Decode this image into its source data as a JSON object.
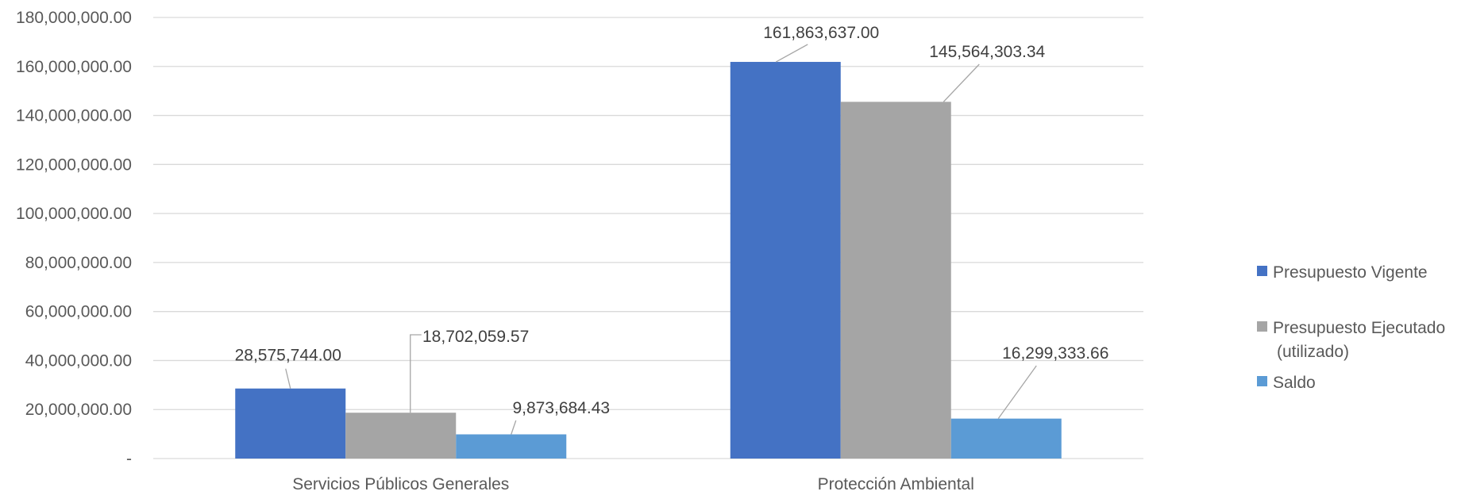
{
  "chart_data": {
    "type": "bar",
    "categories": [
      "Servicios Públicos Generales",
      "Protección Ambiental"
    ],
    "series": [
      {
        "name": "Presupuesto Vigente",
        "color": "#4472c4",
        "values": [
          28575744.0,
          161863637.0
        ],
        "labels": [
          "28,575,744.00",
          "161,863,637.00"
        ]
      },
      {
        "name": "Presupuesto Ejecutado (utilizado)",
        "color": "#a5a5a5",
        "values": [
          18702059.57,
          145564303.34
        ],
        "labels": [
          "18,702,059.57",
          "145,564,303.34"
        ]
      },
      {
        "name": "Saldo",
        "color": "#5b9bd5",
        "values": [
          9873684.43,
          16299333.66
        ],
        "labels": [
          "9,873,684.43",
          "16,299,333.66"
        ]
      }
    ],
    "ylim": [
      0,
      180000000
    ],
    "yticks": [
      {
        "value": 0,
        "label": "-"
      },
      {
        "value": 20000000,
        "label": "20,000,000.00"
      },
      {
        "value": 40000000,
        "label": "40,000,000.00"
      },
      {
        "value": 60000000,
        "label": "60,000,000.00"
      },
      {
        "value": 80000000,
        "label": "80,000,000.00"
      },
      {
        "value": 100000000,
        "label": "100,000,000.00"
      },
      {
        "value": 120000000,
        "label": "120,000,000.00"
      },
      {
        "value": 140000000,
        "label": "140,000,000.00"
      },
      {
        "value": 160000000,
        "label": "160,000,000.00"
      },
      {
        "value": 180000000,
        "label": "180,000,000.00"
      }
    ],
    "legend_lines": [
      [
        "Presupuesto Vigente"
      ],
      [
        "Presupuesto Ejecutado",
        "(utilizado)"
      ],
      [
        "Saldo"
      ]
    ],
    "legend_position": "right",
    "grid": true
  }
}
